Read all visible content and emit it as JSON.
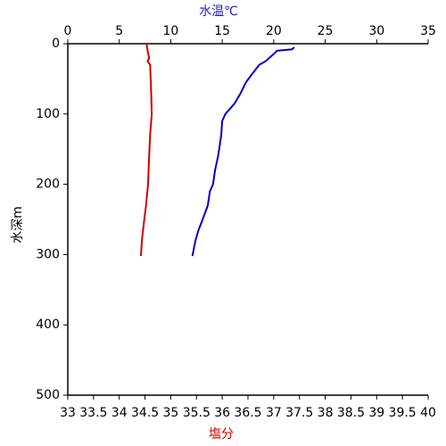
{
  "chart_data": {
    "type": "line",
    "x2_label": "水温℃",
    "x_label": "塩分",
    "y_label": "水深m",
    "x2lim": [
      0,
      35
    ],
    "x2ticks": [
      0,
      5,
      10,
      15,
      20,
      25,
      30,
      35
    ],
    "xlim": [
      33,
      40
    ],
    "xticks": [
      33,
      33.5,
      34,
      34.5,
      35,
      35.5,
      36,
      36.5,
      37,
      37.5,
      38,
      38.5,
      39,
      39.5,
      40
    ],
    "ylim": [
      0,
      500
    ],
    "yticks": [
      0,
      100,
      200,
      300,
      400,
      500
    ],
    "y_inverted": true,
    "series": [
      {
        "axis": "x2",
        "color": "#0000c0",
        "x": [
          22.0,
          21.8,
          20.3,
          20.2,
          19.2,
          18.6,
          17.8,
          17.3,
          16.8,
          16.2,
          15.6,
          15.3,
          15.0,
          14.9,
          14.7,
          14.6,
          14.3,
          14.1,
          13.8,
          13.6,
          13.1,
          12.7,
          12.4,
          12.2,
          12.1
        ],
        "y": [
          5,
          8,
          10,
          12,
          25,
          30,
          45,
          55,
          70,
          85,
          95,
          100,
          110,
          130,
          150,
          160,
          180,
          200,
          210,
          230,
          250,
          265,
          280,
          295,
          302
        ]
      },
      {
        "axis": "x",
        "color": "#d00000",
        "x": [
          34.53,
          34.55,
          34.58,
          34.55,
          34.6,
          34.62,
          34.63,
          34.6,
          34.58,
          34.56,
          34.52,
          34.47,
          34.44,
          34.42
        ],
        "y": [
          0,
          10,
          20,
          25,
          30,
          70,
          100,
          130,
          160,
          200,
          230,
          260,
          280,
          302
        ]
      }
    ]
  }
}
